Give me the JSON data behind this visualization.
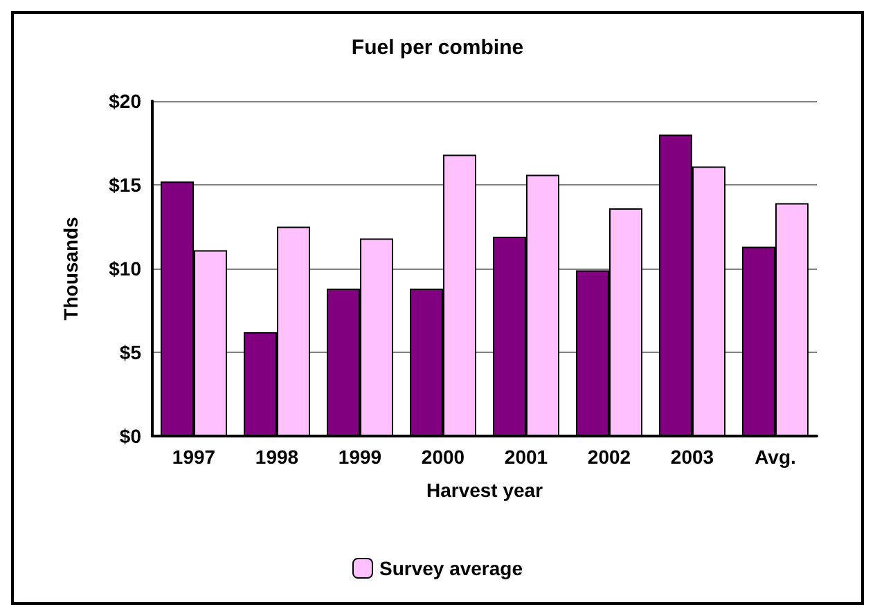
{
  "chart_data": {
    "type": "bar",
    "title": "Fuel per combine",
    "xlabel": "Harvest year",
    "ylabel": "Thousands",
    "categories": [
      "1997",
      "1998",
      "1999",
      "2000",
      "2001",
      "2002",
      "2003",
      "Avg."
    ],
    "series": [
      {
        "color": "#800080",
        "values": [
          15.2,
          6.2,
          8.8,
          8.8,
          11.9,
          9.9,
          18.0,
          11.3
        ]
      },
      {
        "name": "Survey average",
        "color": "#ffc0ff",
        "values": [
          11.1,
          12.5,
          11.8,
          16.8,
          15.6,
          13.6,
          16.1,
          13.9
        ]
      }
    ],
    "ylim": [
      0,
      20
    ],
    "yticks": [
      {
        "value": 0,
        "label": "$0"
      },
      {
        "value": 5,
        "label": "$5"
      },
      {
        "value": 10,
        "label": "$10"
      },
      {
        "value": 15,
        "label": "$15"
      },
      {
        "value": 20,
        "label": "$20"
      }
    ],
    "grid": "y",
    "legend": "bottom"
  }
}
